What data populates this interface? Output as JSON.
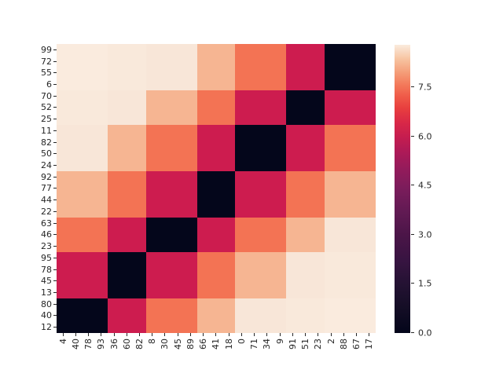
{
  "figure": {
    "background_color": "#ffffff",
    "title": ""
  },
  "chart_data": {
    "type": "heatmap",
    "title": "",
    "xlabel": "",
    "ylabel": "",
    "x_tick_labels": [
      "4",
      "40",
      "78",
      "93",
      "36",
      "60",
      "82",
      "8",
      "30",
      "45",
      "89",
      "66",
      "41",
      "18",
      "0",
      "71",
      "34",
      "9",
      "91",
      "51",
      "23",
      "2",
      "88",
      "67",
      "17"
    ],
    "y_tick_labels": [
      "99",
      "72",
      "55",
      "6",
      "70",
      "52",
      "25",
      "11",
      "82",
      "50",
      "24",
      "92",
      "77",
      "44",
      "22",
      "63",
      "46",
      "23",
      "95",
      "78",
      "45",
      "13",
      "80",
      "40",
      "12"
    ],
    "grid": false,
    "structure_note": "25x25 matrix of 7x7 uniform blocks; dark diagonal of zero-value blocks runs top-right to bottom-left",
    "row_group_sizes": [
      4,
      3,
      4,
      4,
      3,
      4,
      3
    ],
    "col_group_sizes": [
      4,
      3,
      4,
      3,
      4,
      3,
      4
    ],
    "row_groups_labels": [
      [
        "99",
        "72",
        "55",
        "6"
      ],
      [
        "70",
        "52",
        "25"
      ],
      [
        "11",
        "82",
        "50",
        "24"
      ],
      [
        "92",
        "77",
        "44",
        "22"
      ],
      [
        "63",
        "46",
        "23"
      ],
      [
        "95",
        "78",
        "45",
        "13"
      ],
      [
        "80",
        "40",
        "12"
      ]
    ],
    "col_groups_labels": [
      [
        "4",
        "40",
        "78",
        "93"
      ],
      [
        "36",
        "60",
        "82"
      ],
      [
        "8",
        "30",
        "45",
        "89"
      ],
      [
        "66",
        "41",
        "18"
      ],
      [
        "0",
        "71",
        "34",
        "9"
      ],
      [
        "91",
        "51",
        "23"
      ],
      [
        "2",
        "88",
        "67",
        "17"
      ]
    ],
    "block_values": [
      [
        8.8,
        8.7,
        8.6,
        7.9,
        6.8,
        5.0,
        0.0
      ],
      [
        8.7,
        8.6,
        7.9,
        6.8,
        5.0,
        0.0,
        5.0
      ],
      [
        8.6,
        7.9,
        6.8,
        5.0,
        0.0,
        5.0,
        6.8
      ],
      [
        7.9,
        6.8,
        5.0,
        0.0,
        5.0,
        6.8,
        7.9
      ],
      [
        6.8,
        5.0,
        0.0,
        5.0,
        6.8,
        7.9,
        8.6
      ],
      [
        5.0,
        0.0,
        5.0,
        6.8,
        7.9,
        8.6,
        8.7
      ],
      [
        0.0,
        5.0,
        6.8,
        7.9,
        8.6,
        8.7,
        8.8
      ]
    ],
    "value_colors": {
      "0.0": "#04061B",
      "5.0": "#CD1C4F",
      "6.8": "#F37354",
      "7.9": "#F6B592",
      "8.6": "#F8E6D8",
      "8.7": "#F9E9DB",
      "8.8": "#FAEBDE"
    },
    "colorbar": {
      "colormap": "rocket",
      "vmin": 0.0,
      "vmax": 8.8,
      "tick_labels": [
        "0.0",
        "1.5",
        "3.0",
        "4.5",
        "6.0",
        "7.5"
      ],
      "tick_values": [
        0.0,
        1.5,
        3.0,
        4.5,
        6.0,
        7.5
      ],
      "position": "right",
      "gradient_stops": [
        [
          "0%",
          "#03051A"
        ],
        [
          "9%",
          "#150E26"
        ],
        [
          "17%",
          "#241233"
        ],
        [
          "25%",
          "#371441"
        ],
        [
          "34%",
          "#4B1548"
        ],
        [
          "42%",
          "#611A53"
        ],
        [
          "50%",
          "#7A1C5B"
        ],
        [
          "57%",
          "#941B5B"
        ],
        [
          "63%",
          "#AE1A57"
        ],
        [
          "68%",
          "#C51D4F"
        ],
        [
          "73%",
          "#D92847"
        ],
        [
          "78%",
          "#E83F3E"
        ],
        [
          "82%",
          "#EF5A48"
        ],
        [
          "86%",
          "#F3785A"
        ],
        [
          "90%",
          "#F49A75"
        ],
        [
          "95%",
          "#F7C3A0"
        ],
        [
          "100%",
          "#FAEBDD"
        ]
      ]
    }
  }
}
